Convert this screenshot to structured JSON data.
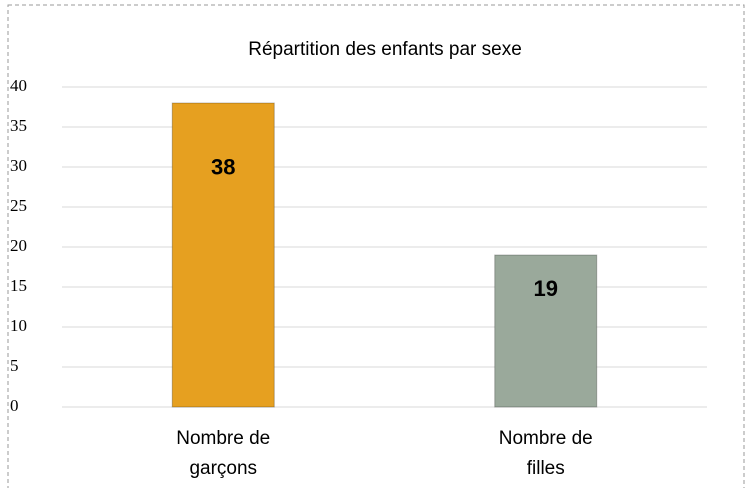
{
  "chart_data": {
    "type": "bar",
    "title": "Répartition des enfants par sexe",
    "categories": [
      "Nombre de garçons",
      "Nombre de filles"
    ],
    "values": [
      38,
      19
    ],
    "colors": [
      "#e6a020",
      "#9aa99b"
    ],
    "ylim": [
      0,
      40
    ],
    "yticks": [
      0,
      5,
      10,
      15,
      20,
      25,
      30,
      35,
      40
    ],
    "grid": true
  }
}
